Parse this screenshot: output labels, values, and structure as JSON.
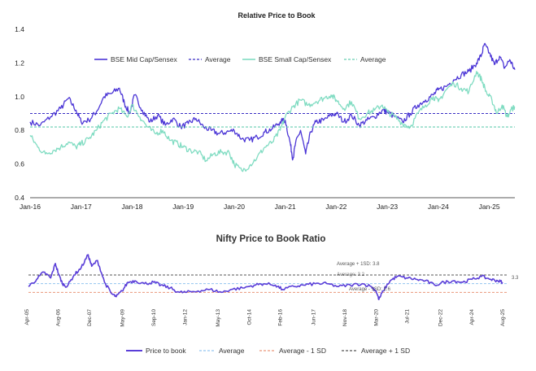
{
  "colors": {
    "midcap": "#4b35d6",
    "midcap_avg": "#3a2fc4",
    "smallcap": "#80dcc2",
    "smallcap_avg": "#66cdb0",
    "pb": "#5a3ed8",
    "pb_avg": "#93c5f0",
    "pb_minus": "#e9967a",
    "pb_plus": "#555555",
    "axis": "#222222",
    "grid": "#dddddd"
  },
  "chart_data": [
    {
      "type": "line",
      "title": "Relative Price to Book",
      "xlabel": "",
      "ylabel": "",
      "ylim": [
        0.4,
        1.4
      ],
      "yticks": [
        "0.4",
        "0.6",
        "0.8",
        "1.0",
        "1.2",
        "1.4"
      ],
      "xlim": [
        2016.0,
        2025.5
      ],
      "xticks": [
        {
          "x": 2016,
          "label": "Jan-16"
        },
        {
          "x": 2017,
          "label": "Jan-17"
        },
        {
          "x": 2018,
          "label": "Jan-18"
        },
        {
          "x": 2019,
          "label": "Jan-19"
        },
        {
          "x": 2020,
          "label": "Jan-20"
        },
        {
          "x": 2021,
          "label": "Jan-21"
        },
        {
          "x": 2022,
          "label": "Jan-22"
        },
        {
          "x": 2023,
          "label": "Jan-23"
        },
        {
          "x": 2024,
          "label": "Jan-24"
        },
        {
          "x": 2025,
          "label": "Jan-25"
        }
      ],
      "legend": [
        {
          "label": "BSE Mid Cap/Sensex",
          "style": "solid",
          "colorKey": "midcap"
        },
        {
          "label": "Average",
          "style": "dashed",
          "colorKey": "midcap_avg"
        },
        {
          "label": "BSE Small Cap/Sensex",
          "style": "solid",
          "colorKey": "smallcap"
        },
        {
          "label": "Average",
          "style": "dashed",
          "colorKey": "smallcap_avg"
        }
      ],
      "series": [
        {
          "name": "BSE Mid Cap/Sensex",
          "colorKey": "midcap",
          "x": [
            2016.0,
            2016.2,
            2016.4,
            2016.6,
            2016.75,
            2016.9,
            2017.0,
            2017.15,
            2017.3,
            2017.45,
            2017.6,
            2017.75,
            2017.85,
            2017.95,
            2018.05,
            2018.2,
            2018.35,
            2018.5,
            2018.65,
            2018.8,
            2018.95,
            2019.1,
            2019.25,
            2019.4,
            2019.55,
            2019.7,
            2019.85,
            2020.0,
            2020.15,
            2020.3,
            2020.45,
            2020.6,
            2020.75,
            2020.9,
            2021.0,
            2021.1,
            2021.15,
            2021.2,
            2021.3,
            2021.4,
            2021.5,
            2021.6,
            2021.75,
            2021.9,
            2022.0,
            2022.15,
            2022.3,
            2022.45,
            2022.6,
            2022.75,
            2022.9,
            2023.0,
            2023.15,
            2023.3,
            2023.45,
            2023.6,
            2023.75,
            2023.9,
            2024.0,
            2024.15,
            2024.3,
            2024.45,
            2024.6,
            2024.75,
            2024.85,
            2024.9,
            2025.0,
            2025.1,
            2025.2,
            2025.3,
            2025.4,
            2025.5
          ],
          "y": [
            0.85,
            0.83,
            0.88,
            0.93,
            0.99,
            0.92,
            0.85,
            0.86,
            0.91,
            1.0,
            1.02,
            1.05,
            0.96,
            0.9,
            1.01,
            0.92,
            0.85,
            0.89,
            0.83,
            0.87,
            0.82,
            0.84,
            0.87,
            0.82,
            0.8,
            0.78,
            0.79,
            0.8,
            0.75,
            0.74,
            0.76,
            0.79,
            0.81,
            0.85,
            0.86,
            0.72,
            0.63,
            0.72,
            0.8,
            0.66,
            0.79,
            0.85,
            0.86,
            0.89,
            0.9,
            0.85,
            0.89,
            0.83,
            0.86,
            0.88,
            0.92,
            0.91,
            0.88,
            0.85,
            0.9,
            0.95,
            0.98,
            1.01,
            1.04,
            1.06,
            1.1,
            1.13,
            1.15,
            1.2,
            1.25,
            1.31,
            1.26,
            1.19,
            1.24,
            1.17,
            1.22,
            1.16
          ]
        },
        {
          "name": "Average",
          "colorKey": "midcap_avg",
          "dashed": true,
          "x": [
            2016.0,
            2025.5
          ],
          "y": [
            0.9,
            0.9
          ]
        },
        {
          "name": "BSE Small Cap/Sensex",
          "colorKey": "smallcap",
          "x": [
            2016.0,
            2016.15,
            2016.3,
            2016.45,
            2016.6,
            2016.75,
            2016.9,
            2017.0,
            2017.15,
            2017.3,
            2017.45,
            2017.6,
            2017.75,
            2017.9,
            2018.0,
            2018.15,
            2018.3,
            2018.45,
            2018.6,
            2018.75,
            2018.9,
            2019.0,
            2019.15,
            2019.3,
            2019.45,
            2019.6,
            2019.75,
            2019.9,
            2020.0,
            2020.15,
            2020.3,
            2020.45,
            2020.6,
            2020.75,
            2020.9,
            2021.0,
            2021.15,
            2021.3,
            2021.45,
            2021.6,
            2021.75,
            2021.9,
            2022.0,
            2022.15,
            2022.3,
            2022.45,
            2022.6,
            2022.75,
            2022.9,
            2023.0,
            2023.15,
            2023.3,
            2023.45,
            2023.6,
            2023.75,
            2023.9,
            2024.0,
            2024.15,
            2024.3,
            2024.45,
            2024.6,
            2024.75,
            2024.85,
            2024.95,
            2025.05,
            2025.15,
            2025.25,
            2025.35,
            2025.45,
            2025.5
          ],
          "y": [
            0.77,
            0.7,
            0.66,
            0.68,
            0.7,
            0.73,
            0.7,
            0.72,
            0.75,
            0.8,
            0.86,
            0.9,
            0.93,
            0.88,
            0.95,
            0.88,
            0.82,
            0.78,
            0.8,
            0.74,
            0.72,
            0.7,
            0.68,
            0.67,
            0.62,
            0.66,
            0.67,
            0.67,
            0.6,
            0.56,
            0.59,
            0.64,
            0.7,
            0.73,
            0.8,
            0.88,
            0.94,
            0.98,
            0.95,
            0.97,
            0.99,
            1.01,
            0.98,
            0.93,
            0.97,
            0.87,
            0.9,
            0.92,
            0.95,
            0.91,
            0.88,
            0.84,
            0.82,
            0.9,
            0.95,
            1.0,
            0.97,
            1.04,
            1.08,
            1.05,
            1.03,
            1.15,
            1.1,
            1.02,
            0.98,
            0.9,
            0.95,
            0.88,
            0.93,
            0.94
          ]
        },
        {
          "name": "Average",
          "colorKey": "smallcap_avg",
          "dashed": true,
          "x": [
            2016.0,
            2025.5
          ],
          "y": [
            0.82,
            0.82
          ]
        }
      ]
    },
    {
      "type": "line",
      "title": "Nifty Price to Book Ratio",
      "xlabel": "",
      "ylabel": "",
      "ylim": [
        2.0,
        5.6
      ],
      "xlim": [
        2005.25,
        2025.75
      ],
      "xticks": [
        {
          "x": 2005.25,
          "label": "Apr-05"
        },
        {
          "x": 2006.58,
          "label": "Aug-06"
        },
        {
          "x": 2007.92,
          "label": "Dec-07"
        },
        {
          "x": 2009.33,
          "label": "May-09"
        },
        {
          "x": 2010.67,
          "label": "Sep-10"
        },
        {
          "x": 2012.0,
          "label": "Jan-12"
        },
        {
          "x": 2013.42,
          "label": "May-13"
        },
        {
          "x": 2014.75,
          "label": "Oct-14"
        },
        {
          "x": 2016.08,
          "label": "Feb-16"
        },
        {
          "x": 2017.5,
          "label": "Jun-17"
        },
        {
          "x": 2018.83,
          "label": "Nov-18"
        },
        {
          "x": 2020.17,
          "label": "Mar-20"
        },
        {
          "x": 2021.5,
          "label": "Jul-21"
        },
        {
          "x": 2022.92,
          "label": "Dec-22"
        },
        {
          "x": 2024.25,
          "label": "Apr-24"
        },
        {
          "x": 2025.58,
          "label": "Aug-25"
        }
      ],
      "annotations": {
        "plus": "Average + 1SD: 3.8",
        "avg": "Average: 3.2",
        "minus": "Average - 1SD: 2.6",
        "last": "3.3"
      },
      "reference_lines": [
        {
          "name": "Average",
          "value": 3.2,
          "colorKey": "pb_avg"
        },
        {
          "name": "Average - 1 SD",
          "value": 2.6,
          "colorKey": "pb_minus"
        },
        {
          "name": "Average + 1 SD",
          "value": 3.8,
          "colorKey": "pb_plus"
        }
      ],
      "legend": [
        {
          "label": "Price to book",
          "style": "solid",
          "colorKey": "pb"
        },
        {
          "label": "Average",
          "style": "dashed",
          "colorKey": "pb_avg"
        },
        {
          "label": "Average - 1 SD",
          "style": "dashed",
          "colorKey": "pb_minus"
        },
        {
          "label": "Average + 1 SD",
          "style": "dashed",
          "colorKey": "pb_plus"
        }
      ],
      "series": [
        {
          "name": "Price to book",
          "colorKey": "pb",
          "x": [
            2005.25,
            2005.6,
            2005.9,
            2006.2,
            2006.4,
            2006.55,
            2006.7,
            2006.9,
            2007.2,
            2007.5,
            2007.8,
            2007.95,
            2008.2,
            2008.5,
            2008.8,
            2009.0,
            2009.25,
            2009.5,
            2009.8,
            2010.2,
            2010.6,
            2010.9,
            2011.3,
            2011.7,
            2012.0,
            2012.5,
            2013.0,
            2013.5,
            2013.9,
            2014.4,
            2014.9,
            2015.3,
            2015.8,
            2016.1,
            2016.6,
            2017.0,
            2017.5,
            2018.0,
            2018.5,
            2019.0,
            2019.5,
            2019.9,
            2020.1,
            2020.22,
            2020.4,
            2020.7,
            2021.0,
            2021.4,
            2021.8,
            2022.2,
            2022.6,
            2023.0,
            2023.4,
            2023.8,
            2024.2,
            2024.6,
            2025.0,
            2025.3,
            2025.5
          ],
          "y": [
            3.0,
            3.5,
            4.0,
            3.6,
            4.6,
            3.8,
            3.2,
            3.0,
            3.8,
            4.3,
            5.2,
            4.4,
            4.8,
            3.3,
            2.5,
            2.3,
            2.7,
            3.3,
            3.4,
            3.2,
            3.3,
            3.1,
            2.9,
            2.6,
            2.6,
            2.7,
            2.8,
            2.6,
            2.8,
            2.9,
            3.1,
            3.2,
            3.1,
            2.8,
            3.0,
            3.1,
            3.2,
            3.2,
            3.0,
            3.1,
            3.2,
            3.0,
            2.7,
            2.1,
            2.7,
            3.4,
            3.7,
            3.6,
            3.5,
            3.4,
            3.1,
            3.3,
            3.4,
            3.3,
            3.5,
            3.7,
            3.5,
            3.4,
            3.3
          ]
        }
      ]
    }
  ]
}
